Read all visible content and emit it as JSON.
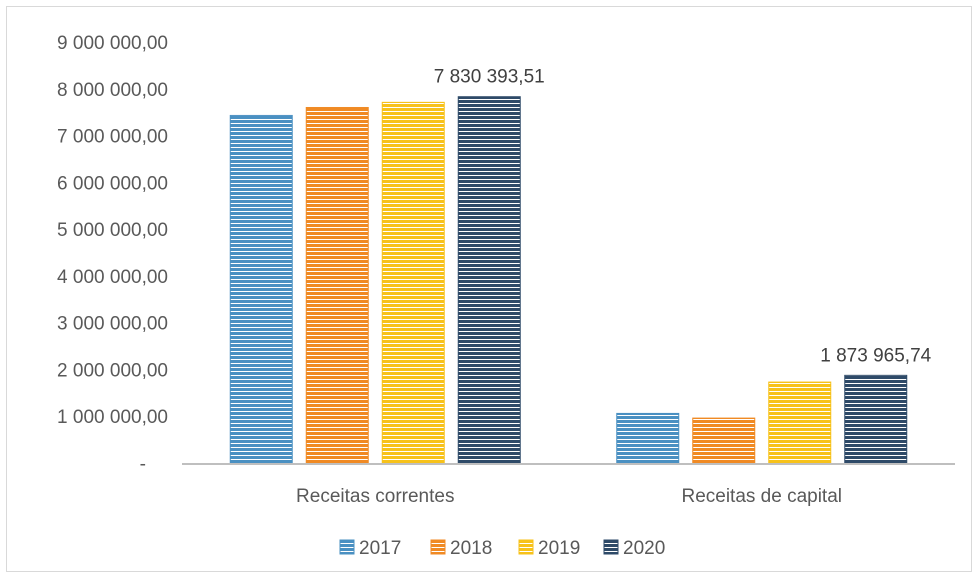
{
  "chart_data": {
    "type": "bar",
    "categories": [
      "Receitas correntes",
      "Receitas de capital"
    ],
    "series": [
      {
        "name": "2017",
        "values": [
          7430000,
          1060000
        ],
        "color": "#4a90c2"
      },
      {
        "name": "2018",
        "values": [
          7600000,
          960000
        ],
        "color": "#f08a24"
      },
      {
        "name": "2019",
        "values": [
          7710000,
          1730000
        ],
        "color": "#f7c21a"
      },
      {
        "name": "2020",
        "values": [
          7830393.51,
          1873965.74
        ],
        "color": "#2e4a68"
      }
    ],
    "data_labels": [
      {
        "series": 3,
        "category": 0,
        "text": "7 830 393,51"
      },
      {
        "series": 3,
        "category": 1,
        "text": "1 873 965,74"
      }
    ],
    "yticks": [
      {
        "value": 0,
        "label": "-"
      },
      {
        "value": 1000000,
        "label": "1 000 000,00"
      },
      {
        "value": 2000000,
        "label": "2 000 000,00"
      },
      {
        "value": 3000000,
        "label": "3 000 000,00"
      },
      {
        "value": 4000000,
        "label": "4 000 000,00"
      },
      {
        "value": 5000000,
        "label": "5 000 000,00"
      },
      {
        "value": 6000000,
        "label": "6 000 000,00"
      },
      {
        "value": 7000000,
        "label": "7 000 000,00"
      },
      {
        "value": 8000000,
        "label": "8 000 000,00"
      },
      {
        "value": 9000000,
        "label": "9 000 000,00"
      }
    ],
    "ylim": [
      0,
      9000000
    ],
    "grid": false,
    "legend": "bottom",
    "bar_style": "horizontal-striped"
  }
}
